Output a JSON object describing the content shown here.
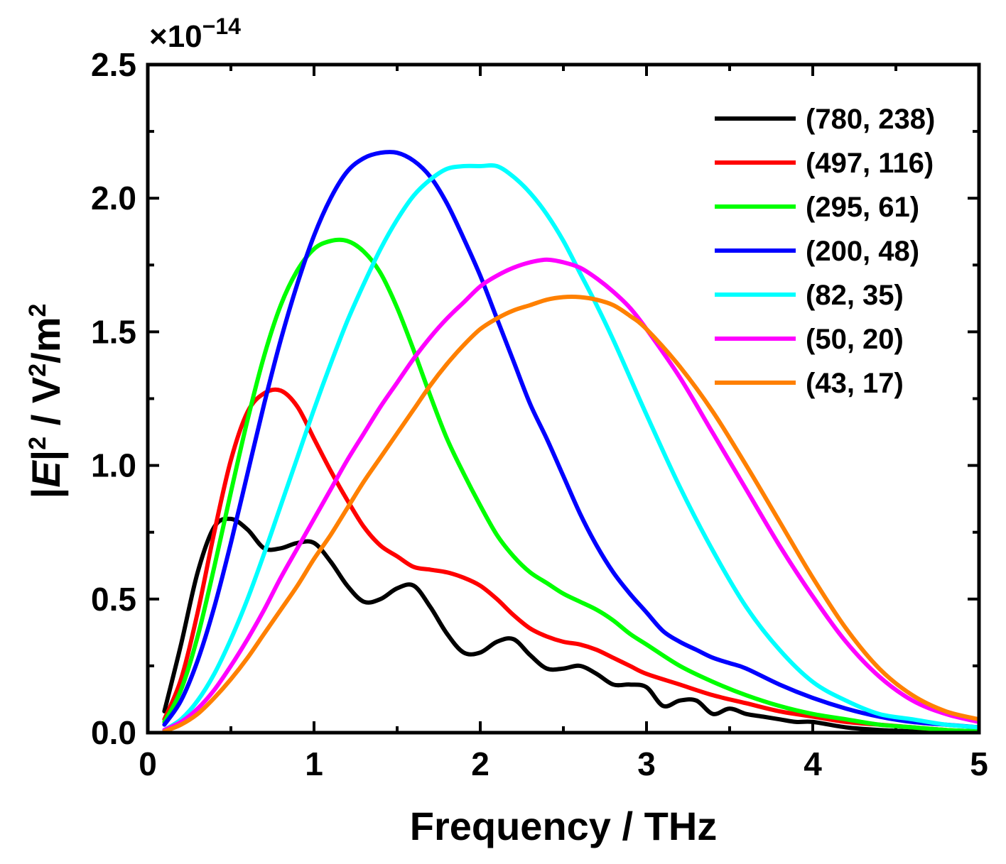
{
  "chart_data": {
    "type": "line",
    "title": "",
    "xlabel": "Frequency / THz",
    "ylabel": {
      "prefix": "|",
      "italic": "E",
      "mid": "|",
      "sup1": "2",
      "mid2": " / V",
      "sup2": "2",
      "mid3": "/m",
      "sup3": "2"
    },
    "y_multiplier": {
      "prefix": "×10",
      "exponent": "−14"
    },
    "xlim": [
      0,
      5
    ],
    "ylim": [
      0,
      2.5
    ],
    "xticks": [
      0,
      1,
      2,
      3,
      4,
      5
    ],
    "xtick_labels": [
      "0",
      "1",
      "2",
      "3",
      "4",
      "5"
    ],
    "yticks": [
      0,
      0.5,
      1.0,
      1.5,
      2.0,
      2.5
    ],
    "ytick_labels": [
      "0.0",
      "0.5",
      "1.0",
      "1.5",
      "2.0",
      "2.5"
    ],
    "grid": false,
    "legend_position": "top-right",
    "series": [
      {
        "name": "(780, 238)",
        "color": "#000000",
        "x": [
          0.1,
          0.2,
          0.3,
          0.4,
          0.5,
          0.6,
          0.7,
          0.8,
          0.9,
          1.0,
          1.1,
          1.2,
          1.3,
          1.4,
          1.5,
          1.6,
          1.7,
          1.8,
          1.9,
          2.0,
          2.1,
          2.2,
          2.3,
          2.4,
          2.5,
          2.6,
          2.7,
          2.8,
          2.9,
          3.0,
          3.1,
          3.2,
          3.3,
          3.4,
          3.5,
          3.6,
          3.7,
          3.8,
          3.9,
          4.0,
          4.2,
          4.4,
          4.6,
          4.8,
          5.0
        ],
        "y": [
          0.08,
          0.33,
          0.6,
          0.77,
          0.8,
          0.76,
          0.69,
          0.69,
          0.71,
          0.71,
          0.64,
          0.55,
          0.49,
          0.5,
          0.54,
          0.55,
          0.47,
          0.37,
          0.3,
          0.3,
          0.34,
          0.35,
          0.29,
          0.24,
          0.24,
          0.25,
          0.22,
          0.18,
          0.18,
          0.17,
          0.1,
          0.12,
          0.12,
          0.07,
          0.09,
          0.07,
          0.06,
          0.05,
          0.04,
          0.04,
          0.02,
          0.01,
          0.005,
          0.002,
          0.0
        ]
      },
      {
        "name": "(497, 116)",
        "color": "#ff0000",
        "x": [
          0.1,
          0.2,
          0.3,
          0.4,
          0.5,
          0.6,
          0.7,
          0.8,
          0.9,
          1.0,
          1.1,
          1.2,
          1.3,
          1.4,
          1.5,
          1.6,
          1.7,
          1.8,
          1.9,
          2.0,
          2.1,
          2.2,
          2.3,
          2.4,
          2.5,
          2.6,
          2.7,
          2.8,
          2.9,
          3.0,
          3.2,
          3.4,
          3.6,
          3.8,
          4.0,
          4.2,
          4.4,
          4.6,
          4.8,
          5.0
        ],
        "y": [
          0.05,
          0.2,
          0.45,
          0.75,
          1.02,
          1.2,
          1.27,
          1.28,
          1.22,
          1.1,
          0.98,
          0.87,
          0.77,
          0.7,
          0.66,
          0.62,
          0.61,
          0.6,
          0.58,
          0.55,
          0.5,
          0.44,
          0.39,
          0.36,
          0.34,
          0.33,
          0.31,
          0.28,
          0.25,
          0.22,
          0.18,
          0.14,
          0.11,
          0.08,
          0.06,
          0.04,
          0.03,
          0.02,
          0.01,
          0.005
        ]
      },
      {
        "name": "(295, 61)",
        "color": "#00ff00",
        "x": [
          0.1,
          0.2,
          0.3,
          0.4,
          0.5,
          0.6,
          0.7,
          0.8,
          0.9,
          1.0,
          1.1,
          1.2,
          1.3,
          1.4,
          1.5,
          1.6,
          1.7,
          1.8,
          1.9,
          2.0,
          2.1,
          2.2,
          2.3,
          2.4,
          2.5,
          2.6,
          2.7,
          2.8,
          2.9,
          3.0,
          3.2,
          3.4,
          3.6,
          3.8,
          4.0,
          4.2,
          4.4,
          4.6,
          4.8,
          5.0
        ],
        "y": [
          0.04,
          0.16,
          0.36,
          0.62,
          0.9,
          1.17,
          1.41,
          1.6,
          1.73,
          1.81,
          1.84,
          1.84,
          1.8,
          1.72,
          1.59,
          1.43,
          1.26,
          1.1,
          0.97,
          0.85,
          0.74,
          0.66,
          0.6,
          0.56,
          0.52,
          0.49,
          0.46,
          0.42,
          0.37,
          0.33,
          0.25,
          0.19,
          0.14,
          0.1,
          0.07,
          0.05,
          0.03,
          0.02,
          0.01,
          0.005
        ]
      },
      {
        "name": "(200, 48)",
        "color": "#0000ff",
        "x": [
          0.1,
          0.2,
          0.3,
          0.4,
          0.5,
          0.6,
          0.7,
          0.8,
          0.9,
          1.0,
          1.1,
          1.2,
          1.3,
          1.4,
          1.5,
          1.6,
          1.7,
          1.8,
          1.9,
          2.0,
          2.1,
          2.2,
          2.3,
          2.4,
          2.5,
          2.6,
          2.7,
          2.8,
          2.9,
          3.0,
          3.1,
          3.2,
          3.3,
          3.4,
          3.5,
          3.6,
          3.8,
          4.0,
          4.2,
          4.4,
          4.6,
          4.8,
          5.0
        ],
        "y": [
          0.03,
          0.12,
          0.27,
          0.47,
          0.71,
          0.97,
          1.23,
          1.47,
          1.68,
          1.86,
          2.0,
          2.1,
          2.15,
          2.17,
          2.17,
          2.14,
          2.08,
          1.98,
          1.85,
          1.71,
          1.55,
          1.39,
          1.23,
          1.1,
          0.96,
          0.82,
          0.7,
          0.6,
          0.52,
          0.45,
          0.38,
          0.34,
          0.31,
          0.28,
          0.26,
          0.24,
          0.18,
          0.13,
          0.09,
          0.06,
          0.04,
          0.03,
          0.02
        ]
      },
      {
        "name": "(82, 35)",
        "color": "#00ffff",
        "x": [
          0.1,
          0.2,
          0.3,
          0.4,
          0.5,
          0.6,
          0.7,
          0.8,
          0.9,
          1.0,
          1.1,
          1.2,
          1.3,
          1.4,
          1.5,
          1.6,
          1.7,
          1.8,
          1.9,
          2.0,
          2.1,
          2.2,
          2.3,
          2.4,
          2.5,
          2.6,
          2.7,
          2.8,
          2.9,
          3.0,
          3.2,
          3.4,
          3.6,
          3.8,
          4.0,
          4.2,
          4.4,
          4.6,
          4.8,
          5.0
        ],
        "y": [
          0.01,
          0.05,
          0.12,
          0.22,
          0.35,
          0.5,
          0.67,
          0.85,
          1.03,
          1.21,
          1.38,
          1.54,
          1.68,
          1.81,
          1.92,
          2.01,
          2.07,
          2.11,
          2.12,
          2.12,
          2.12,
          2.08,
          2.02,
          1.94,
          1.84,
          1.72,
          1.6,
          1.47,
          1.33,
          1.19,
          0.92,
          0.68,
          0.47,
          0.31,
          0.19,
          0.12,
          0.07,
          0.05,
          0.03,
          0.02
        ]
      },
      {
        "name": "(50, 20)",
        "color": "#ff00ff",
        "x": [
          0.1,
          0.2,
          0.3,
          0.4,
          0.5,
          0.6,
          0.7,
          0.8,
          0.9,
          1.0,
          1.1,
          1.2,
          1.3,
          1.4,
          1.5,
          1.6,
          1.7,
          1.8,
          1.9,
          2.0,
          2.1,
          2.2,
          2.3,
          2.4,
          2.5,
          2.6,
          2.7,
          2.8,
          2.9,
          3.0,
          3.2,
          3.4,
          3.6,
          3.8,
          4.0,
          4.2,
          4.4,
          4.6,
          4.8,
          5.0
        ],
        "y": [
          0.01,
          0.04,
          0.09,
          0.16,
          0.25,
          0.35,
          0.46,
          0.58,
          0.69,
          0.8,
          0.91,
          1.02,
          1.12,
          1.22,
          1.31,
          1.4,
          1.48,
          1.55,
          1.61,
          1.67,
          1.71,
          1.74,
          1.76,
          1.77,
          1.76,
          1.74,
          1.7,
          1.65,
          1.59,
          1.51,
          1.33,
          1.12,
          0.91,
          0.7,
          0.51,
          0.34,
          0.21,
          0.12,
          0.07,
          0.04
        ]
      },
      {
        "name": "(43, 17)",
        "color": "#ff8000",
        "x": [
          0.1,
          0.2,
          0.3,
          0.4,
          0.5,
          0.6,
          0.7,
          0.8,
          0.9,
          1.0,
          1.1,
          1.2,
          1.3,
          1.4,
          1.5,
          1.6,
          1.7,
          1.8,
          1.9,
          2.0,
          2.1,
          2.2,
          2.3,
          2.4,
          2.5,
          2.6,
          2.7,
          2.8,
          2.9,
          3.0,
          3.2,
          3.4,
          3.6,
          3.8,
          4.0,
          4.2,
          4.4,
          4.6,
          4.8,
          5.0
        ],
        "y": [
          0.005,
          0.03,
          0.07,
          0.13,
          0.2,
          0.28,
          0.37,
          0.46,
          0.55,
          0.65,
          0.74,
          0.84,
          0.94,
          1.03,
          1.12,
          1.21,
          1.3,
          1.38,
          1.45,
          1.51,
          1.55,
          1.58,
          1.6,
          1.62,
          1.63,
          1.63,
          1.62,
          1.6,
          1.56,
          1.51,
          1.37,
          1.2,
          1.0,
          0.79,
          0.58,
          0.39,
          0.24,
          0.14,
          0.08,
          0.05
        ]
      }
    ]
  }
}
